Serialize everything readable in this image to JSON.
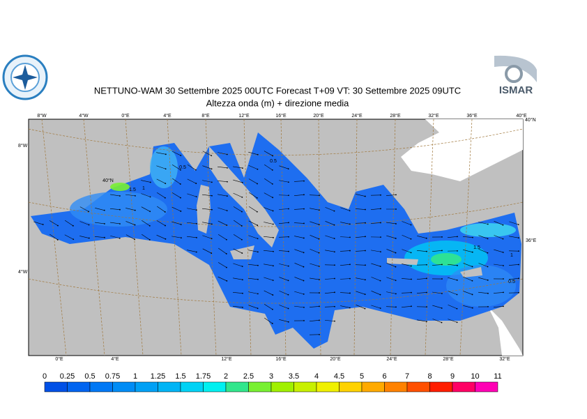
{
  "header": {
    "title": "NETTUNO-WAM  30 Settembre 2025 00UTC Forecast T+09 VT: 30 Settembre 2025 09UTC",
    "subtitle": "Altezza onda (m) + direzione media",
    "logo_right": "ISMAR"
  },
  "map": {
    "top_labels": [
      "8°W",
      "4°W",
      "0°E",
      "4°E",
      "8°E",
      "12°E",
      "16°E",
      "20°E",
      "24°E",
      "28°E",
      "32°E",
      "36°E",
      "40°E"
    ],
    "corner_label": "40°N",
    "left_labels": [
      "8°W",
      "4°W"
    ],
    "right_label": "36°E",
    "bottom_labels": [
      "0°E",
      "4°E",
      "12°E",
      "16°E",
      "20°E",
      "24°E",
      "28°E",
      "32°E"
    ],
    "contour_labels": [
      "40°N",
      "1.5",
      "1",
      "0.5",
      "0.5",
      "1.5",
      "1",
      "0.5"
    ]
  },
  "legend": {
    "ticks": [
      0,
      0.25,
      0.5,
      0.75,
      1,
      1.25,
      1.5,
      1.75,
      2,
      2.5,
      3,
      3.5,
      4,
      4.5,
      5,
      6,
      7,
      8,
      9,
      10,
      11
    ],
    "colors": [
      "#0050e6",
      "#0064f0",
      "#0078f5",
      "#008cf5",
      "#00a0f5",
      "#00b4f5",
      "#00d2f5",
      "#00f0f0",
      "#32e68c",
      "#78f032",
      "#a0f000",
      "#c8f000",
      "#f0f000",
      "#ffd200",
      "#ffaa00",
      "#ff8200",
      "#ff5000",
      "#ff1e00",
      "#ff0064",
      "#ff00b4"
    ]
  }
}
